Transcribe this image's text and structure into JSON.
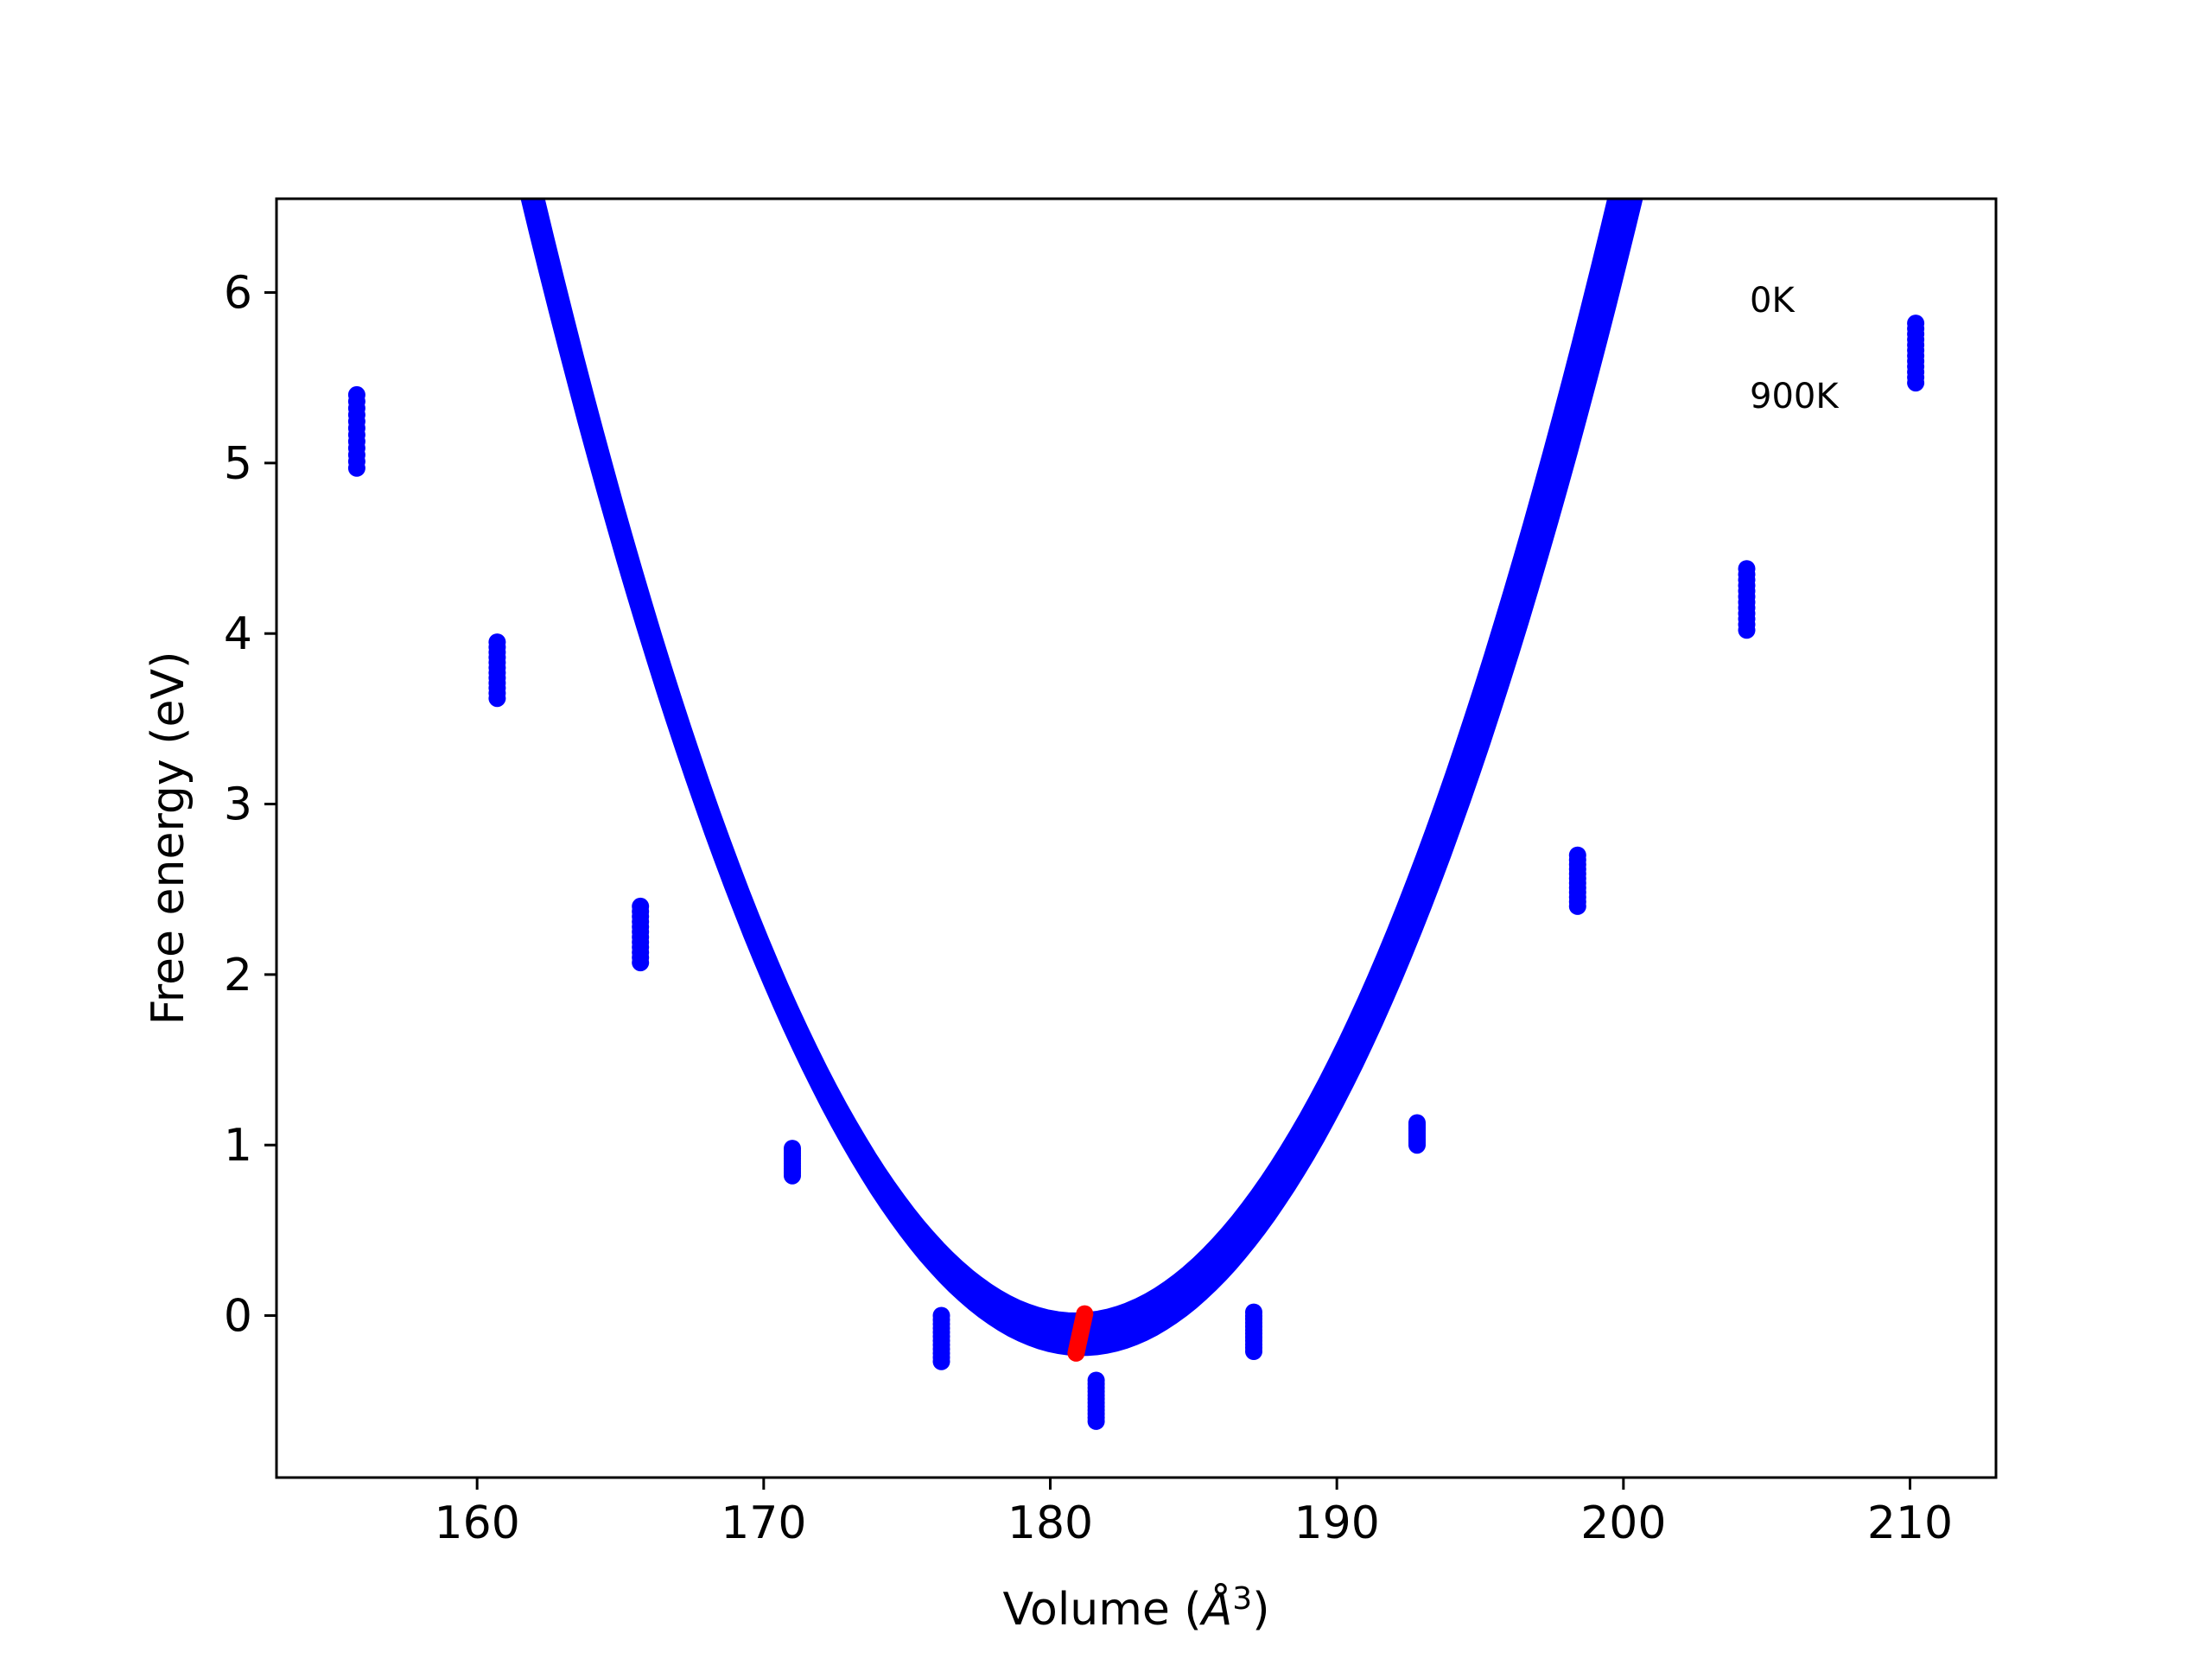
{
  "chart_data": {
    "type": "scatter",
    "xlabel_main": "Volume (",
    "xlabel_symbol": "Å",
    "xlabel_sup": "3",
    "xlabel_close": ")",
    "ylabel": "Free energy (eV)",
    "xlim": [
      153,
      213
    ],
    "ylim": [
      -0.95,
      6.55
    ],
    "xticks": [
      160,
      170,
      180,
      190,
      200,
      210
    ],
    "yticks": [
      0,
      1,
      2,
      3,
      4,
      5,
      6
    ],
    "annotations": [
      "0K",
      "900K"
    ],
    "grid": false,
    "colors": {
      "curves": "#0000ff",
      "points": "#0000ff",
      "minima": "#ff0000"
    },
    "fit_curves": {
      "temperatures_K": [
        0,
        900
      ],
      "x_range": [
        155.8,
        210.2
      ],
      "minimum_volume": [
        180.9,
        181.1
      ],
      "minimum_energy": [
        0.0,
        -0.22
      ],
      "curvature": [
        0.01885,
        0.01785
      ],
      "right_skew": [
        0.0,
        0.0
      ]
    },
    "data_columns": [
      {
        "x": 155.8,
        "y_top": 5.4,
        "y_bottom": 4.97
      },
      {
        "x": 160.7,
        "y_top": 3.95,
        "y_bottom": 3.62
      },
      {
        "x": 165.7,
        "y_top": 2.4,
        "y_bottom": 2.07
      },
      {
        "x": 171.0,
        "y_top": 0.98,
        "y_bottom": 0.82
      },
      {
        "x": 176.2,
        "y_top": 0.0,
        "y_bottom": -0.27
      },
      {
        "x": 181.6,
        "y_top": -0.38,
        "y_bottom": -0.62
      },
      {
        "x": 187.1,
        "y_top": 0.02,
        "y_bottom": -0.21
      },
      {
        "x": 192.8,
        "y_top": 1.13,
        "y_bottom": 1.0
      },
      {
        "x": 198.4,
        "y_top": 2.7,
        "y_bottom": 2.4
      },
      {
        "x": 204.3,
        "y_top": 4.38,
        "y_bottom": 4.02
      },
      {
        "x": 210.2,
        "y_top": 5.82,
        "y_bottom": 5.47
      }
    ],
    "minima_points": {
      "x_start": 181.2,
      "x_end": 180.9,
      "y_start": 0.01,
      "y_end": -0.22
    }
  }
}
